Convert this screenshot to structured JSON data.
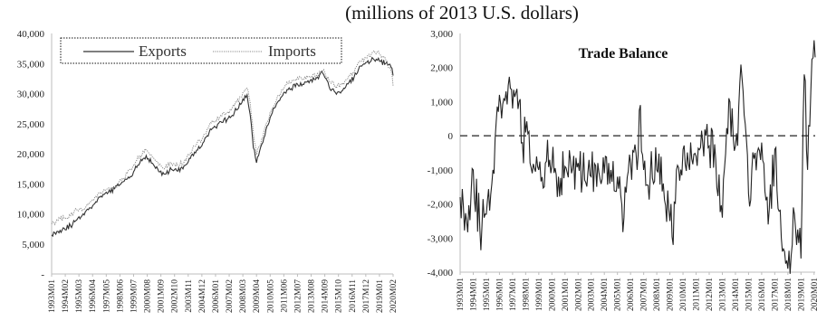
{
  "figure": {
    "title": "(millions of 2013 U.S. dollars)"
  },
  "chart_data": [
    {
      "type": "line",
      "title": "",
      "xlabel": "",
      "ylabel": "",
      "ylim": [
        0,
        40000
      ],
      "y_ticks": [
        0,
        5000,
        10000,
        15000,
        20000,
        25000,
        30000,
        35000,
        40000
      ],
      "y_tick_labels": [
        "-",
        "5,000",
        "10,000",
        "15,000",
        "20,000",
        "25,000",
        "30,000",
        "35,000",
        "40,000"
      ],
      "x_tick_labels": [
        "1993M01",
        "1994M02",
        "1995M03",
        "1996M04",
        "1997M05",
        "1998M06",
        "1999M07",
        "2000M08",
        "2001M09",
        "2002M10",
        "2003M11",
        "2004M12",
        "2006M01",
        "2007M02",
        "2008M03",
        "2009M04",
        "2010M05",
        "2011M06",
        "2012M07",
        "2013M08",
        "2014M09",
        "2015M10",
        "2016M11",
        "2017M12",
        "2019M01",
        "2020M02"
      ],
      "grid": false,
      "legend": {
        "placement": "top-left",
        "entries": [
          "Exports",
          "Imports"
        ]
      },
      "series": [
        {
          "name": "Exports",
          "style": "solid",
          "color": "#333333",
          "points": [
            [
              "1993M01",
              6500
            ],
            [
              "1993M07",
              7100
            ],
            [
              "1994M01",
              7600
            ],
            [
              "1994M07",
              8000
            ],
            [
              "1995M01",
              9000
            ],
            [
              "1995M07",
              10000
            ],
            [
              "1996M01",
              11000
            ],
            [
              "1996M07",
              12000
            ],
            [
              "1997M01",
              12800
            ],
            [
              "1997M07",
              13600
            ],
            [
              "1998M01",
              14200
            ],
            [
              "1998M07",
              15000
            ],
            [
              "1999M01",
              15800
            ],
            [
              "1999M07",
              17000
            ],
            [
              "2000M01",
              18500
            ],
            [
              "2000M07",
              19700
            ],
            [
              "2001M01",
              18400
            ],
            [
              "2001M07",
              17000
            ],
            [
              "2002M01",
              16600
            ],
            [
              "2002M07",
              17400
            ],
            [
              "2003M01",
              17100
            ],
            [
              "2003M07",
              18000
            ],
            [
              "2004M01",
              19200
            ],
            [
              "2004M07",
              20600
            ],
            [
              "2005M01",
              21800
            ],
            [
              "2005M07",
              23600
            ],
            [
              "2006M01",
              24400
            ],
            [
              "2006M07",
              25200
            ],
            [
              "2007M01",
              25900
            ],
            [
              "2007M07",
              26900
            ],
            [
              "2008M01",
              28200
            ],
            [
              "2008M07",
              29800
            ],
            [
              "2008M10",
              26500
            ],
            [
              "2009M01",
              21000
            ],
            [
              "2009M04",
              18500
            ],
            [
              "2009M07",
              20500
            ],
            [
              "2010M01",
              24000
            ],
            [
              "2010M07",
              26800
            ],
            [
              "2011M01",
              28800
            ],
            [
              "2011M07",
              30200
            ],
            [
              "2012M01",
              30800
            ],
            [
              "2012M07",
              31600
            ],
            [
              "2013M01",
              31500
            ],
            [
              "2013M07",
              32200
            ],
            [
              "2014M01",
              32600
            ],
            [
              "2014M07",
              33400
            ],
            [
              "2015M01",
              31200
            ],
            [
              "2015M07",
              30200
            ],
            [
              "2016M01",
              30400
            ],
            [
              "2016M07",
              31600
            ],
            [
              "2017M01",
              32800
            ],
            [
              "2017M07",
              34600
            ],
            [
              "2018M01",
              35200
            ],
            [
              "2018M07",
              35800
            ],
            [
              "2019M01",
              35400
            ],
            [
              "2019M07",
              35000
            ],
            [
              "2020M01",
              34200
            ],
            [
              "2020M02",
              33000
            ]
          ]
        },
        {
          "name": "Imports",
          "style": "dotted",
          "color": "#8a8a8a",
          "points": [
            [
              "1993M01",
              8300
            ],
            [
              "1993M07",
              8900
            ],
            [
              "1994M01",
              9300
            ],
            [
              "1994M07",
              9700
            ],
            [
              "1995M01",
              10700
            ],
            [
              "1995M07",
              10700
            ],
            [
              "1996M01",
              11800
            ],
            [
              "1996M07",
              12900
            ],
            [
              "1997M01",
              13600
            ],
            [
              "1997M07",
              14300
            ],
            [
              "1998M01",
              14300
            ],
            [
              "1998M07",
              15500
            ],
            [
              "1999M01",
              16800
            ],
            [
              "1999M07",
              18100
            ],
            [
              "2000M01",
              19700
            ],
            [
              "2000M07",
              20600
            ],
            [
              "2001M01",
              19400
            ],
            [
              "2001M07",
              18100
            ],
            [
              "2002M01",
              17600
            ],
            [
              "2002M07",
              18400
            ],
            [
              "2003M01",
              18000
            ],
            [
              "2003M07",
              18600
            ],
            [
              "2004M01",
              20100
            ],
            [
              "2004M07",
              21600
            ],
            [
              "2005M01",
              22700
            ],
            [
              "2005M07",
              24700
            ],
            [
              "2006M01",
              25500
            ],
            [
              "2006M07",
              26300
            ],
            [
              "2007M01",
              27000
            ],
            [
              "2007M07",
              28000
            ],
            [
              "2008M01",
              29400
            ],
            [
              "2008M07",
              30900
            ],
            [
              "2008M10",
              28500
            ],
            [
              "2009M01",
              23500
            ],
            [
              "2009M04",
              19800
            ],
            [
              "2009M07",
              21300
            ],
            [
              "2010M01",
              25000
            ],
            [
              "2010M07",
              27600
            ],
            [
              "2011M01",
              29800
            ],
            [
              "2011M07",
              31300
            ],
            [
              "2012M01",
              31800
            ],
            [
              "2012M07",
              32700
            ],
            [
              "2013M01",
              32400
            ],
            [
              "2013M07",
              32900
            ],
            [
              "2014M01",
              33000
            ],
            [
              "2014M07",
              33800
            ],
            [
              "2015M01",
              32200
            ],
            [
              "2015M07",
              31300
            ],
            [
              "2016M01",
              31500
            ],
            [
              "2016M07",
              32500
            ],
            [
              "2017M01",
              33500
            ],
            [
              "2017M07",
              35300
            ],
            [
              "2018M01",
              35900
            ],
            [
              "2018M07",
              37000
            ],
            [
              "2019M01",
              36600
            ],
            [
              "2019M07",
              35600
            ],
            [
              "2020M01",
              33200
            ],
            [
              "2020M02",
              31300
            ]
          ]
        }
      ]
    },
    {
      "type": "line",
      "title": "Trade Balance",
      "xlabel": "",
      "ylabel": "",
      "ylim": [
        -4000,
        3000
      ],
      "y_ticks": [
        -4000,
        -3000,
        -2000,
        -1000,
        0,
        1000,
        2000,
        3000
      ],
      "y_tick_labels": [
        "-4,000",
        "-3,000",
        "-2,000",
        "-1,000",
        "0",
        "1,000",
        "2,000",
        "3,000"
      ],
      "x_tick_labels": [
        "1993M01",
        "1994M01",
        "1995M01",
        "1996M01",
        "1997M01",
        "1998M01",
        "1999M01",
        "2000M01",
        "2001M01",
        "2002M01",
        "2003M01",
        "2004M01",
        "2005M01",
        "2006M01",
        "2007M01",
        "2008M01",
        "2009M01",
        "2010M01",
        "2011M01",
        "2012M01",
        "2013M01",
        "2014M01",
        "2015M01",
        "2016M01",
        "2017M01",
        "2018M01",
        "2019M01",
        "2020M01"
      ],
      "grid": false,
      "zero_line": "dashed",
      "legend": null,
      "series": [
        {
          "style": "solid",
          "color": "#222222",
          "points": [
            [
              "1993M01",
              -1800
            ],
            [
              "1993M07",
              -2500
            ],
            [
              "1994M01",
              -1000
            ],
            [
              "1994M07",
              -2700
            ],
            [
              "1995M01",
              -2300
            ],
            [
              "1995M07",
              -1000
            ],
            [
              "1995M10",
              400
            ],
            [
              "1996M01",
              1200
            ],
            [
              "1996M07",
              1300
            ],
            [
              "1997M01",
              800
            ],
            [
              "1997M07",
              1000
            ],
            [
              "1997M10",
              -200
            ],
            [
              "1998M01",
              100
            ],
            [
              "1998M07",
              -1100
            ],
            [
              "1999M01",
              -1000
            ],
            [
              "1999M07",
              -800
            ],
            [
              "2000M01",
              -900
            ],
            [
              "2000M07",
              -1200
            ],
            [
              "2001M01",
              -900
            ],
            [
              "2001M07",
              -1100
            ],
            [
              "2002M01",
              -800
            ],
            [
              "2002M07",
              -1300
            ],
            [
              "2003M01",
              -1200
            ],
            [
              "2003M07",
              -800
            ],
            [
              "2004M01",
              -1100
            ],
            [
              "2004M07",
              -1000
            ],
            [
              "2005M01",
              -1200
            ],
            [
              "2005M07",
              -2400
            ],
            [
              "2006M01",
              -800
            ],
            [
              "2006M07",
              -1000
            ],
            [
              "2006M10",
              900
            ],
            [
              "2007M01",
              -1000
            ],
            [
              "2007M07",
              -1200
            ],
            [
              "2008M01",
              -1000
            ],
            [
              "2008M07",
              -1400
            ],
            [
              "2009M01",
              -2500
            ],
            [
              "2009M04",
              -3200
            ],
            [
              "2009M07",
              -1000
            ],
            [
              "2010M01",
              -400
            ],
            [
              "2010M07",
              -1000
            ],
            [
              "2011M01",
              -600
            ],
            [
              "2011M07",
              -200
            ],
            [
              "2012M01",
              -300
            ],
            [
              "2012M07",
              -700
            ],
            [
              "2013M01",
              -2400
            ],
            [
              "2013M07",
              1100
            ],
            [
              "2014M01",
              -300
            ],
            [
              "2014M07",
              1700
            ],
            [
              "2015M01",
              -1700
            ],
            [
              "2015M07",
              -500
            ],
            [
              "2016M01",
              -200
            ],
            [
              "2016M07",
              -2600
            ],
            [
              "2017M01",
              -400
            ],
            [
              "2017M07",
              -3000
            ],
            [
              "2018M01",
              -3900
            ],
            [
              "2018M07",
              -2300
            ],
            [
              "2019M01",
              -3600
            ],
            [
              "2019M04",
              1800
            ],
            [
              "2019M07",
              -1000
            ],
            [
              "2020M01",
              2800
            ],
            [
              "2020M02",
              2300
            ]
          ]
        }
      ]
    }
  ]
}
